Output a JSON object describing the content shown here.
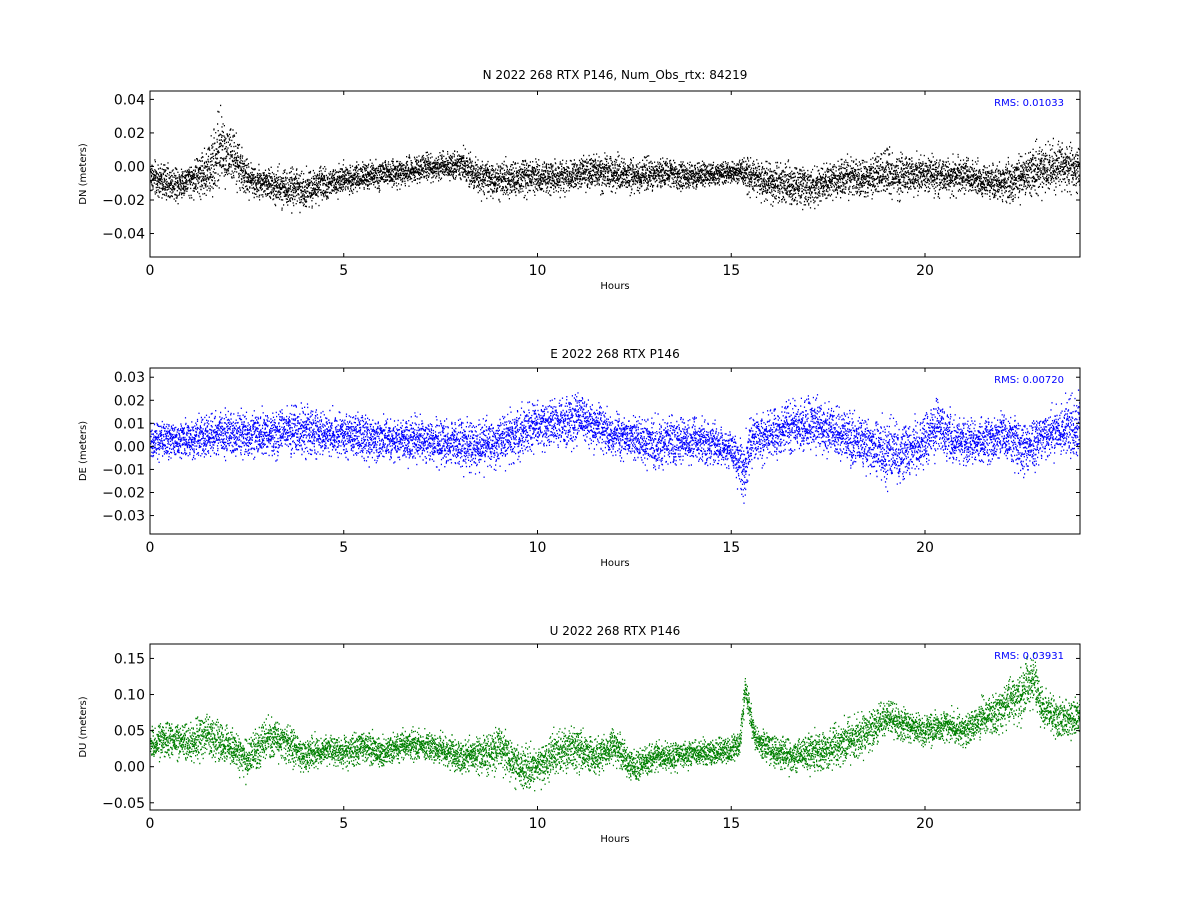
{
  "chart_data": [
    {
      "type": "scatter",
      "title": "N 2022 268 RTX  P146, Num_Obs_rtx: 84219",
      "xlabel": "Hours",
      "ylabel": "DN (meters)",
      "xlim": [
        0,
        24
      ],
      "ylim": [
        -0.054,
        0.045
      ],
      "xticks": [
        0,
        5,
        10,
        15,
        20
      ],
      "xtick_labels": [
        "0",
        "5",
        "10",
        "15",
        "20"
      ],
      "yticks": [
        -0.04,
        -0.02,
        0.0,
        0.02,
        0.04
      ],
      "ytick_labels": [
        "−0.04",
        "−0.02",
        "0.00",
        "0.02",
        "0.04"
      ],
      "annotation": "RMS:  0.01033",
      "color": "#000000",
      "annotation_color": "#0000ff",
      "series": [
        {
          "x": [
            0,
            0.5,
            1,
            1.5,
            1.8,
            2.2,
            2.5,
            3,
            3.5,
            4,
            4.5,
            5,
            5.5,
            6,
            6.5,
            7,
            7.5,
            8,
            8.5,
            9,
            9.5,
            10,
            10.5,
            11,
            11.5,
            12,
            12.5,
            13,
            13.5,
            14,
            14.5,
            15,
            15.3,
            15.5,
            16,
            16.5,
            17,
            17.5,
            18,
            18.5,
            19,
            19.5,
            20,
            20.5,
            21,
            21.5,
            22,
            22.5,
            23,
            23.5,
            24
          ],
          "y": [
            -0.006,
            -0.01,
            -0.008,
            -0.002,
            0.012,
            0.003,
            -0.007,
            -0.01,
            -0.012,
            -0.013,
            -0.01,
            -0.007,
            -0.006,
            -0.004,
            -0.003,
            -0.001,
            0.001,
            0.002,
            -0.006,
            -0.008,
            -0.007,
            -0.006,
            -0.006,
            -0.005,
            -0.003,
            -0.004,
            -0.005,
            -0.003,
            -0.004,
            -0.005,
            -0.004,
            -0.003,
            -0.003,
            -0.006,
            -0.009,
            -0.01,
            -0.012,
            -0.009,
            -0.006,
            -0.006,
            -0.004,
            -0.005,
            -0.004,
            -0.006,
            -0.005,
            -0.008,
            -0.01,
            -0.005,
            -0.001,
            0.001,
            -0.002
          ],
          "spread": [
            0.008,
            0.008,
            0.007,
            0.013,
            0.016,
            0.011,
            0.008,
            0.007,
            0.009,
            0.009,
            0.007,
            0.007,
            0.006,
            0.006,
            0.006,
            0.006,
            0.006,
            0.007,
            0.008,
            0.008,
            0.008,
            0.008,
            0.007,
            0.007,
            0.008,
            0.008,
            0.007,
            0.007,
            0.006,
            0.006,
            0.005,
            0.005,
            0.006,
            0.008,
            0.009,
            0.009,
            0.009,
            0.008,
            0.008,
            0.009,
            0.01,
            0.009,
            0.008,
            0.008,
            0.008,
            0.008,
            0.009,
            0.01,
            0.011,
            0.01,
            0.01
          ]
        }
      ]
    },
    {
      "type": "scatter",
      "title": "E 2022 268 RTX  P146",
      "xlabel": "Hours",
      "ylabel": "DE (meters)",
      "xlim": [
        0,
        24
      ],
      "ylim": [
        -0.038,
        0.034
      ],
      "xticks": [
        0,
        5,
        10,
        15,
        20
      ],
      "xtick_labels": [
        "0",
        "5",
        "10",
        "15",
        "20"
      ],
      "yticks": [
        -0.03,
        -0.02,
        -0.01,
        0.0,
        0.01,
        0.02,
        0.03
      ],
      "ytick_labels": [
        "−0.03",
        "−0.02",
        "−0.01",
        "0.00",
        "0.01",
        "0.02",
        "0.03"
      ],
      "annotation": "RMS:  0.00720",
      "color": "#0000ff",
      "annotation_color": "#0000ff",
      "series": [
        {
          "x": [
            0,
            0.5,
            1,
            1.5,
            2,
            2.5,
            3,
            3.5,
            4,
            4.5,
            5,
            5.5,
            6,
            6.5,
            7,
            7.5,
            8,
            8.5,
            9,
            9.5,
            10,
            10.5,
            11,
            11.5,
            12,
            12.5,
            13,
            13.5,
            14,
            14.5,
            15,
            15.2,
            15.3,
            15.5,
            16,
            16.5,
            17,
            17.5,
            18,
            18.5,
            19,
            19.5,
            20,
            20.3,
            20.6,
            21,
            21.5,
            22,
            22.5,
            23,
            23.5,
            24
          ],
          "y": [
            0.002,
            0.003,
            0.003,
            0.005,
            0.006,
            0.005,
            0.006,
            0.007,
            0.007,
            0.006,
            0.005,
            0.004,
            0.003,
            0.003,
            0.003,
            0.002,
            0.001,
            0.0,
            0.002,
            0.007,
            0.009,
            0.01,
            0.012,
            0.009,
            0.005,
            0.004,
            0.002,
            0.002,
            0.004,
            0.001,
            -0.001,
            -0.008,
            -0.012,
            0.002,
            0.006,
            0.008,
            0.01,
            0.008,
            0.004,
            0.001,
            -0.003,
            -0.002,
            0.002,
            0.01,
            0.004,
            0.002,
            0.002,
            0.005,
            0.0,
            0.004,
            0.007,
            0.01
          ],
          "spread": [
            0.007,
            0.006,
            0.006,
            0.007,
            0.007,
            0.007,
            0.007,
            0.008,
            0.008,
            0.007,
            0.007,
            0.007,
            0.007,
            0.007,
            0.007,
            0.007,
            0.008,
            0.008,
            0.008,
            0.008,
            0.008,
            0.008,
            0.008,
            0.008,
            0.007,
            0.007,
            0.008,
            0.008,
            0.007,
            0.007,
            0.006,
            0.008,
            0.01,
            0.008,
            0.008,
            0.008,
            0.008,
            0.008,
            0.009,
            0.009,
            0.01,
            0.009,
            0.008,
            0.009,
            0.008,
            0.007,
            0.008,
            0.008,
            0.008,
            0.009,
            0.009,
            0.01
          ]
        }
      ]
    },
    {
      "type": "scatter",
      "title": "U 2022 268 RTX  P146",
      "xlabel": "Hours",
      "ylabel": "DU (meters)",
      "xlim": [
        0,
        24
      ],
      "ylim": [
        -0.06,
        0.17
      ],
      "xticks": [
        0,
        5,
        10,
        15,
        20
      ],
      "xtick_labels": [
        "0",
        "5",
        "10",
        "15",
        "20"
      ],
      "yticks": [
        -0.05,
        0.0,
        0.05,
        0.1,
        0.15
      ],
      "ytick_labels": [
        "−0.05",
        "0.00",
        "0.05",
        "0.10",
        "0.15"
      ],
      "annotation": "RMS:  0.03931",
      "color": "#008000",
      "annotation_color": "#0000ff",
      "series": [
        {
          "x": [
            0,
            0.5,
            1,
            1.5,
            2,
            2.5,
            3,
            3.5,
            4,
            4.5,
            5,
            5.5,
            6,
            6.5,
            7,
            7.5,
            8,
            8.5,
            9,
            9.5,
            10,
            10.5,
            11,
            11.5,
            12,
            12.5,
            13,
            13.5,
            14,
            14.5,
            15,
            15.2,
            15.35,
            15.6,
            16,
            16.5,
            17,
            17.5,
            18,
            18.5,
            19,
            19.5,
            20,
            20.5,
            21,
            21.5,
            22,
            22.5,
            22.8,
            23,
            23.5,
            24
          ],
          "y": [
            0.03,
            0.04,
            0.035,
            0.045,
            0.03,
            0.01,
            0.04,
            0.035,
            0.015,
            0.025,
            0.02,
            0.03,
            0.02,
            0.03,
            0.03,
            0.025,
            0.015,
            0.015,
            0.03,
            0.0,
            0.0,
            0.02,
            0.025,
            0.015,
            0.03,
            0.0,
            0.015,
            0.015,
            0.02,
            0.02,
            0.025,
            0.03,
            0.11,
            0.04,
            0.025,
            0.015,
            0.02,
            0.025,
            0.035,
            0.045,
            0.07,
            0.06,
            0.05,
            0.06,
            0.05,
            0.07,
            0.08,
            0.1,
            0.125,
            0.08,
            0.065,
            0.07
          ],
          "spread": [
            0.018,
            0.018,
            0.02,
            0.022,
            0.02,
            0.02,
            0.022,
            0.02,
            0.018,
            0.015,
            0.017,
            0.016,
            0.015,
            0.016,
            0.015,
            0.015,
            0.017,
            0.02,
            0.025,
            0.022,
            0.02,
            0.022,
            0.022,
            0.018,
            0.018,
            0.016,
            0.015,
            0.014,
            0.013,
            0.013,
            0.014,
            0.014,
            0.015,
            0.014,
            0.016,
            0.018,
            0.02,
            0.022,
            0.024,
            0.022,
            0.018,
            0.016,
            0.016,
            0.016,
            0.017,
            0.02,
            0.024,
            0.028,
            0.03,
            0.022,
            0.02,
            0.018
          ]
        }
      ]
    }
  ]
}
